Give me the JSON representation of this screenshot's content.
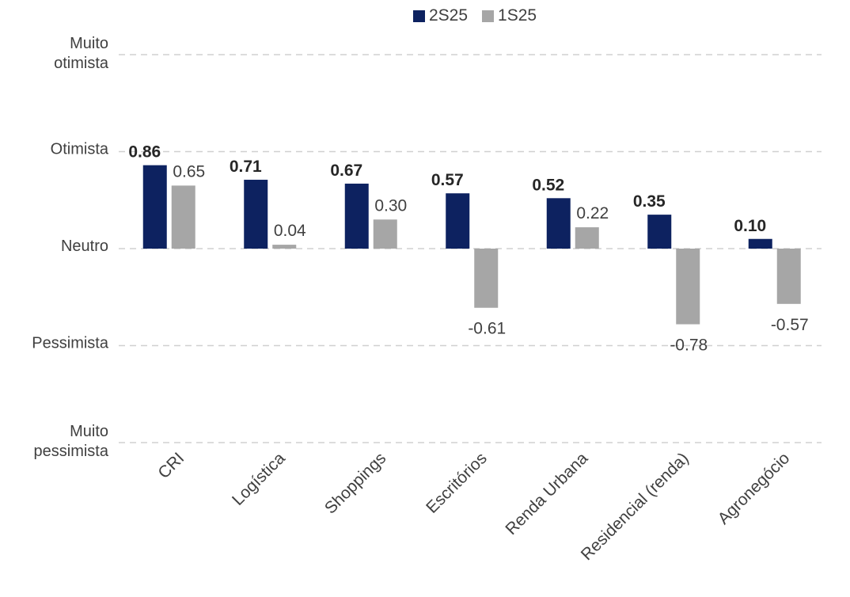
{
  "chart_data": {
    "type": "bar",
    "categories": [
      "CRI",
      "Logística",
      "Shoppings",
      "Escritórios",
      "Renda Urbana",
      "Residencial (renda)",
      "Agronegócio"
    ],
    "series": [
      {
        "name": "2S25",
        "color": "#0d2260",
        "values": [
          0.86,
          0.71,
          0.67,
          0.57,
          0.52,
          0.35,
          0.1
        ],
        "labels": [
          "0.86",
          "0.71",
          "0.67",
          "0.57",
          "0.52",
          "0.35",
          "0.10"
        ]
      },
      {
        "name": "1S25",
        "color": "#a6a6a6",
        "values": [
          0.65,
          0.04,
          0.3,
          -0.61,
          0.22,
          -0.78,
          -0.57
        ],
        "labels": [
          "0.65",
          "0.04",
          "0.30",
          "-0.61",
          "0.22",
          "-0.78",
          "-0.57"
        ]
      }
    ],
    "ylim": [
      -2,
      2
    ],
    "y_ticks": [
      {
        "value": 2,
        "label": "Muito otimista"
      },
      {
        "value": 1,
        "label": "Otimista"
      },
      {
        "value": 0,
        "label": "Neutro"
      },
      {
        "value": -1,
        "label": "Pessimista"
      },
      {
        "value": -2,
        "label": "Muito pessimista"
      }
    ],
    "gridlines": "dashed",
    "legend_position": "top-center"
  }
}
